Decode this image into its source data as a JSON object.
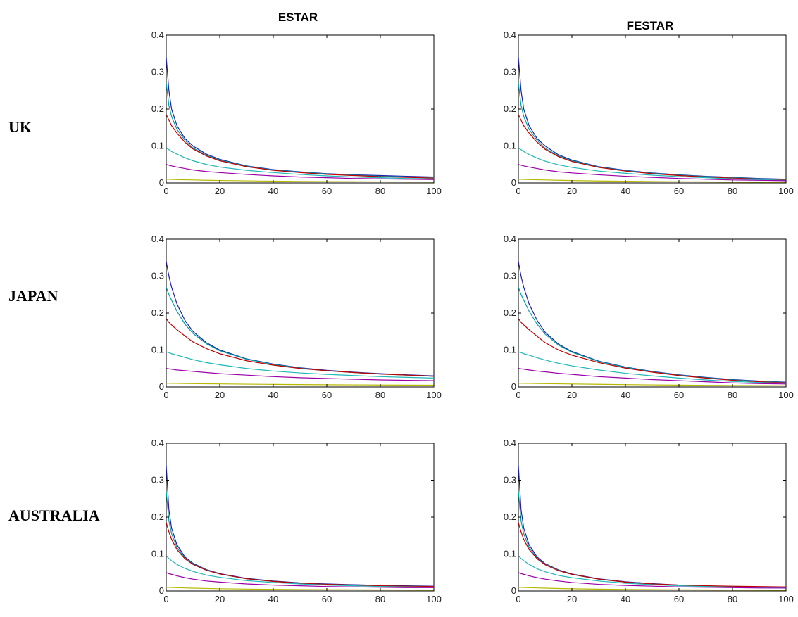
{
  "column_titles": [
    "ESTAR",
    "FESTAR"
  ],
  "row_labels": [
    "UK",
    "JAPAN",
    "AUSTRALIA"
  ],
  "series_colors": [
    "#1f1fa0",
    "#00a0a8",
    "#c00000",
    "#20b8b8",
    "#9b00a8",
    "#b8b800"
  ],
  "chart_data": [
    {
      "type": "line",
      "row": "UK",
      "column": "ESTAR",
      "xlim": [
        0,
        100
      ],
      "ylim": [
        0,
        0.4
      ],
      "xticks": [
        0,
        20,
        40,
        60,
        80,
        100
      ],
      "yticks": [
        0,
        0.1,
        0.2,
        0.3,
        0.4
      ],
      "x": [
        0,
        1,
        2,
        4,
        7,
        10,
        15,
        20,
        30,
        40,
        50,
        60,
        70,
        80,
        90,
        100
      ],
      "series": [
        {
          "color": "#1f1fa0",
          "values": [
            0.34,
            0.25,
            0.2,
            0.155,
            0.12,
            0.1,
            0.078,
            0.064,
            0.046,
            0.036,
            0.03,
            0.025,
            0.022,
            0.02,
            0.018,
            0.016
          ]
        },
        {
          "color": "#00a0a8",
          "values": [
            0.27,
            0.21,
            0.18,
            0.145,
            0.115,
            0.095,
            0.075,
            0.062,
            0.045,
            0.035,
            0.029,
            0.024,
            0.021,
            0.018,
            0.016,
            0.014
          ]
        },
        {
          "color": "#c00000",
          "values": [
            0.185,
            0.17,
            0.155,
            0.135,
            0.11,
            0.092,
            0.073,
            0.06,
            0.044,
            0.034,
            0.028,
            0.023,
            0.02,
            0.017,
            0.015,
            0.013
          ]
        },
        {
          "color": "#20b8b8",
          "values": [
            0.095,
            0.09,
            0.085,
            0.078,
            0.068,
            0.06,
            0.05,
            0.043,
            0.034,
            0.028,
            0.023,
            0.019,
            0.016,
            0.014,
            0.012,
            0.011
          ]
        },
        {
          "color": "#9b00a8",
          "values": [
            0.05,
            0.048,
            0.046,
            0.043,
            0.039,
            0.035,
            0.031,
            0.028,
            0.023,
            0.019,
            0.016,
            0.014,
            0.012,
            0.011,
            0.01,
            0.009
          ]
        },
        {
          "color": "#b8b800",
          "values": [
            0.01,
            0.0098,
            0.0095,
            0.009,
            0.0085,
            0.008,
            0.0072,
            0.0066,
            0.0056,
            0.0048,
            0.0042,
            0.0037,
            0.0033,
            0.003,
            0.0027,
            0.0025
          ]
        }
      ]
    },
    {
      "type": "line",
      "row": "UK",
      "column": "FESTAR",
      "xlim": [
        0,
        100
      ],
      "ylim": [
        0,
        0.4
      ],
      "xticks": [
        0,
        20,
        40,
        60,
        80,
        100
      ],
      "yticks": [
        0,
        0.1,
        0.2,
        0.3,
        0.4
      ],
      "x": [
        0,
        1,
        2,
        4,
        7,
        10,
        15,
        20,
        30,
        40,
        50,
        60,
        70,
        80,
        90,
        100
      ],
      "series": [
        {
          "color": "#1f1fa0",
          "values": [
            0.34,
            0.25,
            0.2,
            0.155,
            0.12,
            0.1,
            0.076,
            0.062,
            0.044,
            0.034,
            0.027,
            0.022,
            0.018,
            0.015,
            0.012,
            0.01
          ]
        },
        {
          "color": "#00a0a8",
          "values": [
            0.27,
            0.21,
            0.18,
            0.145,
            0.115,
            0.094,
            0.073,
            0.06,
            0.043,
            0.033,
            0.026,
            0.021,
            0.017,
            0.014,
            0.011,
            0.009
          ]
        },
        {
          "color": "#c00000",
          "values": [
            0.185,
            0.17,
            0.155,
            0.135,
            0.11,
            0.091,
            0.071,
            0.058,
            0.042,
            0.032,
            0.025,
            0.02,
            0.016,
            0.013,
            0.01,
            0.008
          ]
        },
        {
          "color": "#20b8b8",
          "values": [
            0.095,
            0.09,
            0.085,
            0.077,
            0.067,
            0.059,
            0.049,
            0.042,
            0.032,
            0.026,
            0.021,
            0.017,
            0.014,
            0.011,
            0.009,
            0.007
          ]
        },
        {
          "color": "#9b00a8",
          "values": [
            0.05,
            0.048,
            0.046,
            0.043,
            0.039,
            0.035,
            0.03,
            0.027,
            0.022,
            0.018,
            0.015,
            0.012,
            0.01,
            0.008,
            0.007,
            0.006
          ]
        },
        {
          "color": "#b8b800",
          "values": [
            0.01,
            0.0098,
            0.0095,
            0.009,
            0.0085,
            0.008,
            0.0071,
            0.0064,
            0.0053,
            0.0045,
            0.0038,
            0.0032,
            0.0028,
            0.0024,
            0.0021,
            0.0018
          ]
        }
      ]
    },
    {
      "type": "line",
      "row": "JAPAN",
      "column": "ESTAR",
      "xlim": [
        0,
        100
      ],
      "ylim": [
        0,
        0.4
      ],
      "xticks": [
        0,
        20,
        40,
        60,
        80,
        100
      ],
      "yticks": [
        0,
        0.1,
        0.2,
        0.3,
        0.4
      ],
      "x": [
        0,
        1,
        2,
        4,
        7,
        10,
        15,
        20,
        30,
        40,
        50,
        60,
        70,
        80,
        90,
        100
      ],
      "series": [
        {
          "color": "#1f1fa0",
          "values": [
            0.34,
            0.3,
            0.27,
            0.225,
            0.18,
            0.15,
            0.12,
            0.1,
            0.076,
            0.062,
            0.052,
            0.045,
            0.04,
            0.036,
            0.033,
            0.03
          ]
        },
        {
          "color": "#00a0a8",
          "values": [
            0.27,
            0.25,
            0.235,
            0.205,
            0.17,
            0.145,
            0.117,
            0.098,
            0.075,
            0.061,
            0.051,
            0.044,
            0.039,
            0.035,
            0.032,
            0.029
          ]
        },
        {
          "color": "#c00000",
          "values": [
            0.185,
            0.175,
            0.168,
            0.155,
            0.138,
            0.122,
            0.104,
            0.09,
            0.071,
            0.059,
            0.05,
            0.044,
            0.039,
            0.035,
            0.032,
            0.029
          ]
        },
        {
          "color": "#20b8b8",
          "values": [
            0.095,
            0.093,
            0.09,
            0.086,
            0.08,
            0.074,
            0.066,
            0.06,
            0.05,
            0.043,
            0.038,
            0.034,
            0.031,
            0.028,
            0.026,
            0.024
          ]
        },
        {
          "color": "#9b00a8",
          "values": [
            0.05,
            0.049,
            0.048,
            0.046,
            0.044,
            0.042,
            0.039,
            0.036,
            0.032,
            0.028,
            0.025,
            0.023,
            0.021,
            0.019,
            0.018,
            0.017
          ]
        },
        {
          "color": "#b8b800",
          "values": [
            0.01,
            0.0099,
            0.0098,
            0.0096,
            0.0093,
            0.009,
            0.0086,
            0.0082,
            0.0075,
            0.0069,
            0.0064,
            0.006,
            0.0056,
            0.0053,
            0.005,
            0.0048
          ]
        }
      ]
    },
    {
      "type": "line",
      "row": "JAPAN",
      "column": "FESTAR",
      "xlim": [
        0,
        100
      ],
      "ylim": [
        0,
        0.4
      ],
      "xticks": [
        0,
        20,
        40,
        60,
        80,
        100
      ],
      "yticks": [
        0,
        0.1,
        0.2,
        0.3,
        0.4
      ],
      "x": [
        0,
        1,
        2,
        4,
        7,
        10,
        15,
        20,
        30,
        40,
        50,
        60,
        70,
        80,
        90,
        100
      ],
      "series": [
        {
          "color": "#1f1fa0",
          "values": [
            0.34,
            0.3,
            0.27,
            0.225,
            0.18,
            0.148,
            0.116,
            0.096,
            0.07,
            0.054,
            0.042,
            0.033,
            0.026,
            0.02,
            0.016,
            0.013
          ]
        },
        {
          "color": "#00a0a8",
          "values": [
            0.27,
            0.25,
            0.235,
            0.205,
            0.17,
            0.143,
            0.113,
            0.094,
            0.069,
            0.053,
            0.041,
            0.032,
            0.025,
            0.019,
            0.015,
            0.012
          ]
        },
        {
          "color": "#c00000",
          "values": [
            0.185,
            0.175,
            0.168,
            0.155,
            0.137,
            0.12,
            0.1,
            0.086,
            0.066,
            0.051,
            0.04,
            0.031,
            0.024,
            0.018,
            0.014,
            0.011
          ]
        },
        {
          "color": "#20b8b8",
          "values": [
            0.095,
            0.093,
            0.09,
            0.086,
            0.079,
            0.073,
            0.064,
            0.057,
            0.046,
            0.037,
            0.03,
            0.024,
            0.019,
            0.015,
            0.012,
            0.01
          ]
        },
        {
          "color": "#9b00a8",
          "values": [
            0.05,
            0.049,
            0.048,
            0.046,
            0.043,
            0.041,
            0.037,
            0.034,
            0.028,
            0.024,
            0.02,
            0.017,
            0.014,
            0.011,
            0.009,
            0.008
          ]
        },
        {
          "color": "#b8b800",
          "values": [
            0.01,
            0.0099,
            0.0098,
            0.0096,
            0.0093,
            0.009,
            0.0085,
            0.008,
            0.0071,
            0.0063,
            0.0056,
            0.005,
            0.0044,
            0.0039,
            0.0035,
            0.0031
          ]
        }
      ]
    },
    {
      "type": "line",
      "row": "AUSTRALIA",
      "column": "ESTAR",
      "xlim": [
        0,
        100
      ],
      "ylim": [
        0,
        0.4
      ],
      "xticks": [
        0,
        20,
        40,
        60,
        80,
        100
      ],
      "yticks": [
        0,
        0.1,
        0.2,
        0.3,
        0.4
      ],
      "x": [
        0,
        1,
        2,
        4,
        7,
        10,
        15,
        20,
        30,
        40,
        50,
        60,
        70,
        80,
        90,
        100
      ],
      "series": [
        {
          "color": "#1f1fa0",
          "values": [
            0.34,
            0.22,
            0.17,
            0.125,
            0.092,
            0.075,
            0.058,
            0.047,
            0.034,
            0.027,
            0.022,
            0.019,
            0.017,
            0.015,
            0.014,
            0.013
          ]
        },
        {
          "color": "#00a0a8",
          "values": [
            0.27,
            0.19,
            0.155,
            0.118,
            0.089,
            0.073,
            0.057,
            0.046,
            0.033,
            0.026,
            0.021,
            0.018,
            0.016,
            0.014,
            0.013,
            0.012
          ]
        },
        {
          "color": "#c00000",
          "values": [
            0.185,
            0.16,
            0.14,
            0.112,
            0.087,
            0.072,
            0.056,
            0.046,
            0.033,
            0.026,
            0.021,
            0.018,
            0.016,
            0.014,
            0.013,
            0.012
          ]
        },
        {
          "color": "#20b8b8",
          "values": [
            0.095,
            0.088,
            0.082,
            0.072,
            0.061,
            0.053,
            0.043,
            0.037,
            0.028,
            0.023,
            0.019,
            0.016,
            0.014,
            0.012,
            0.011,
            0.01
          ]
        },
        {
          "color": "#9b00a8",
          "values": [
            0.05,
            0.047,
            0.045,
            0.041,
            0.036,
            0.032,
            0.027,
            0.024,
            0.019,
            0.016,
            0.014,
            0.012,
            0.011,
            0.01,
            0.009,
            0.009
          ]
        },
        {
          "color": "#b8b800",
          "values": [
            0.01,
            0.0097,
            0.0094,
            0.0089,
            0.0082,
            0.0076,
            0.0068,
            0.0061,
            0.0051,
            0.0044,
            0.0038,
            0.0034,
            0.0031,
            0.0028,
            0.0026,
            0.0024
          ]
        }
      ]
    },
    {
      "type": "line",
      "row": "AUSTRALIA",
      "column": "FESTAR",
      "xlim": [
        0,
        100
      ],
      "ylim": [
        0,
        0.4
      ],
      "xticks": [
        0,
        20,
        40,
        60,
        80,
        100
      ],
      "yticks": [
        0,
        0.1,
        0.2,
        0.3,
        0.4
      ],
      "x": [
        0,
        1,
        2,
        4,
        7,
        10,
        15,
        20,
        30,
        40,
        50,
        60,
        70,
        80,
        90,
        100
      ],
      "series": [
        {
          "color": "#1f1fa0",
          "values": [
            0.34,
            0.22,
            0.17,
            0.125,
            0.092,
            0.074,
            0.057,
            0.046,
            0.033,
            0.025,
            0.02,
            0.016,
            0.014,
            0.012,
            0.01,
            0.009
          ]
        },
        {
          "color": "#00a0a8",
          "values": [
            0.27,
            0.19,
            0.155,
            0.118,
            0.089,
            0.072,
            0.056,
            0.045,
            0.032,
            0.024,
            0.019,
            0.015,
            0.013,
            0.011,
            0.009,
            0.008
          ]
        },
        {
          "color": "#c00000",
          "values": [
            0.185,
            0.16,
            0.14,
            0.112,
            0.087,
            0.071,
            0.055,
            0.045,
            0.032,
            0.024,
            0.019,
            0.016,
            0.014,
            0.013,
            0.012,
            0.011
          ]
        },
        {
          "color": "#20b8b8",
          "values": [
            0.095,
            0.088,
            0.082,
            0.072,
            0.06,
            0.052,
            0.042,
            0.036,
            0.027,
            0.021,
            0.017,
            0.014,
            0.012,
            0.01,
            0.009,
            0.008
          ]
        },
        {
          "color": "#9b00a8",
          "values": [
            0.05,
            0.047,
            0.045,
            0.041,
            0.036,
            0.032,
            0.027,
            0.023,
            0.018,
            0.015,
            0.013,
            0.011,
            0.01,
            0.009,
            0.008,
            0.008
          ]
        },
        {
          "color": "#b8b800",
          "values": [
            0.01,
            0.0097,
            0.0094,
            0.0089,
            0.0082,
            0.0076,
            0.0067,
            0.006,
            0.005,
            0.0042,
            0.0036,
            0.0031,
            0.0028,
            0.0025,
            0.0023,
            0.0021
          ]
        }
      ]
    }
  ]
}
